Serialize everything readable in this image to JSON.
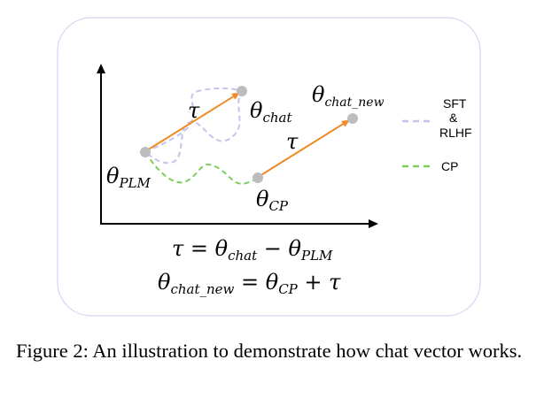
{
  "diagram": {
    "labels": {
      "theta_chat": "θ",
      "theta_chat_sub": "chat",
      "theta_chat_new": "θ",
      "theta_chat_new_sub": "chat_new",
      "theta_plm": "θ",
      "theta_plm_sub": "PLM",
      "theta_cp": "θ",
      "theta_cp_sub": "CP",
      "tau_upper": "τ",
      "tau_lower": "τ"
    },
    "legend": [
      {
        "label_line1": "SFT",
        "label_line2": "&",
        "label_line3": "RLHF",
        "color": "#c5c3ee"
      },
      {
        "label": "CP",
        "color": "#7ccf5a"
      }
    ],
    "equations": {
      "eq1_lhs": "τ",
      "eq1_eq": " = ",
      "eq1_a": "θ",
      "eq1_a_sub": "chat",
      "eq1_minus": " − ",
      "eq1_b": "θ",
      "eq1_b_sub": "PLM",
      "eq2_lhs": "θ",
      "eq2_lhs_sub": "chat_new",
      "eq2_eq": " = ",
      "eq2_a": "θ",
      "eq2_a_sub": "CP",
      "eq2_plus": " + ",
      "eq2_b": "τ"
    },
    "colors": {
      "arrow": "#f08a24",
      "point": "#bdbdbd",
      "frame": "#d6d3f2"
    }
  },
  "caption": {
    "text": "Figure 2: An illustration to demonstrate how chat vector works."
  }
}
